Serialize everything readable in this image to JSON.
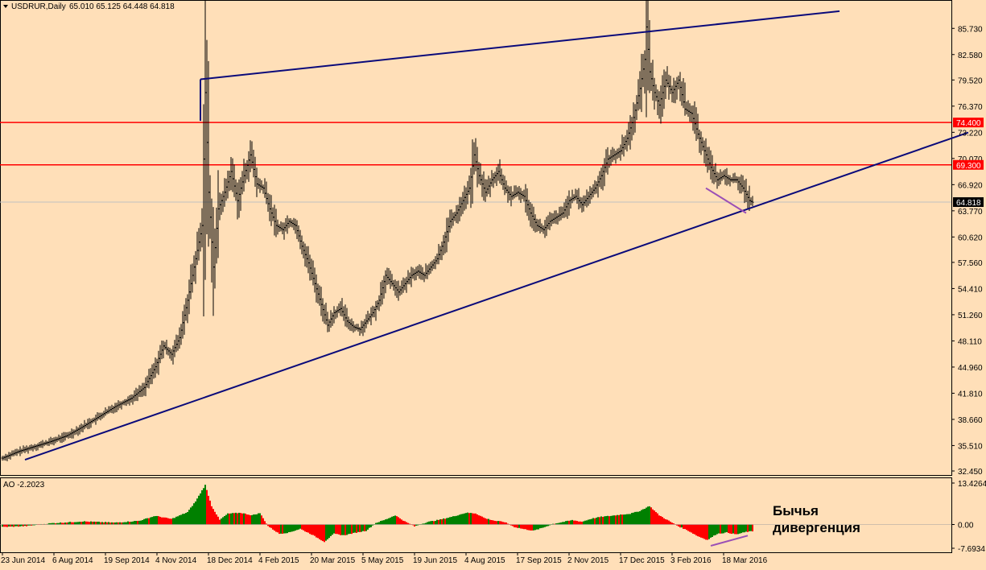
{
  "chart_data": [
    {
      "type": "candlestick",
      "header": {
        "symbol_label": "USDRUR,Daily",
        "ohlc_label": "65.010 65.125 64.448 64.818"
      },
      "ylim": [
        32.45,
        87.5
      ],
      "y_ticks": [
        "85.730",
        "82.580",
        "79.520",
        "76.370",
        "73.220",
        "70.070",
        "66.920",
        "63.770",
        "60.620",
        "57.560",
        "54.410",
        "51.260",
        "48.110",
        "44.960",
        "41.810",
        "38.660",
        "35.510",
        "32.450"
      ],
      "x_ticks": [
        "23 Jun 2014",
        "6 Aug 2014",
        "19 Sep 2014",
        "4 Nov 2014",
        "18 Dec 2014",
        "4 Feb 2015",
        "20 Mar 2015",
        "5 May 2015",
        "19 Jun 2015",
        "4 Aug 2015",
        "17 Sep 2015",
        "2 Nov 2015",
        "17 Dec 2015",
        "3 Feb 2016",
        "18 Mar 2016"
      ],
      "x_tick_index": [
        0,
        32,
        64,
        96,
        128,
        160,
        192,
        224,
        256,
        288,
        320,
        352,
        384,
        416,
        448
      ],
      "price_path": [
        [
          0,
          34.0
        ],
        [
          10,
          34.8
        ],
        [
          20,
          35.4
        ],
        [
          30,
          36.0
        ],
        [
          40,
          36.7
        ],
        [
          50,
          37.8
        ],
        [
          60,
          39.0
        ],
        [
          70,
          40.2
        ],
        [
          80,
          41.2
        ],
        [
          88,
          42.5
        ],
        [
          95,
          45.0
        ],
        [
          100,
          47.5
        ],
        [
          105,
          46.5
        ],
        [
          110,
          48.5
        ],
        [
          115,
          53.0
        ],
        [
          120,
          58.0
        ],
        [
          124,
          62.0
        ],
        [
          126,
          78.0
        ],
        [
          128,
          66.0
        ],
        [
          131,
          57.0
        ],
        [
          134,
          64.0
        ],
        [
          138,
          66.0
        ],
        [
          142,
          68.5
        ],
        [
          146,
          65.0
        ],
        [
          150,
          68.0
        ],
        [
          154,
          70.5
        ],
        [
          158,
          67.0
        ],
        [
          162,
          66.5
        ],
        [
          166,
          64.0
        ],
        [
          170,
          62.0
        ],
        [
          174,
          61.5
        ],
        [
          178,
          62.5
        ],
        [
          182,
          62.0
        ],
        [
          186,
          59.5
        ],
        [
          190,
          57.5
        ],
        [
          194,
          55.0
        ],
        [
          198,
          52.5
        ],
        [
          202,
          50.0
        ],
        [
          206,
          51.5
        ],
        [
          210,
          52.0
        ],
        [
          214,
          50.5
        ],
        [
          218,
          49.8
        ],
        [
          222,
          49.5
        ],
        [
          226,
          50.5
        ],
        [
          230,
          51.5
        ],
        [
          234,
          53.0
        ],
        [
          238,
          56.0
        ],
        [
          242,
          55.0
        ],
        [
          246,
          54.0
        ],
        [
          250,
          55.0
        ],
        [
          254,
          56.0
        ],
        [
          258,
          56.5
        ],
        [
          262,
          56.0
        ],
        [
          266,
          57.0
        ],
        [
          270,
          58.0
        ],
        [
          274,
          60.0
        ],
        [
          278,
          62.5
        ],
        [
          282,
          63.5
        ],
        [
          286,
          65.0
        ],
        [
          290,
          66.5
        ],
        [
          293,
          70.5
        ],
        [
          296,
          68.0
        ],
        [
          300,
          66.0
        ],
        [
          304,
          67.5
        ],
        [
          308,
          68.5
        ],
        [
          312,
          66.5
        ],
        [
          316,
          65.5
        ],
        [
          320,
          66.0
        ],
        [
          324,
          65.5
        ],
        [
          328,
          63.5
        ],
        [
          332,
          62.0
        ],
        [
          336,
          61.5
        ],
        [
          340,
          62.5
        ],
        [
          344,
          63.0
        ],
        [
          348,
          63.5
        ],
        [
          352,
          65.0
        ],
        [
          356,
          65.5
        ],
        [
          360,
          64.5
        ],
        [
          364,
          65.5
        ],
        [
          368,
          66.5
        ],
        [
          372,
          68.0
        ],
        [
          376,
          70.0
        ],
        [
          380,
          70.5
        ],
        [
          384,
          71.0
        ],
        [
          388,
          72.5
        ],
        [
          392,
          75.0
        ],
        [
          396,
          78.5
        ],
        [
          399,
          82.0
        ],
        [
          400,
          85.9
        ],
        [
          402,
          80.5
        ],
        [
          405,
          78.0
        ],
        [
          408,
          76.5
        ],
        [
          412,
          79.5
        ],
        [
          416,
          78.0
        ],
        [
          420,
          79.5
        ],
        [
          424,
          76.0
        ],
        [
          428,
          75.5
        ],
        [
          432,
          73.0
        ],
        [
          436,
          71.0
        ],
        [
          440,
          69.0
        ],
        [
          444,
          67.5
        ],
        [
          448,
          68.0
        ],
        [
          452,
          67.5
        ],
        [
          456,
          67.5
        ],
        [
          460,
          66.5
        ],
        [
          464,
          65.0
        ],
        [
          466,
          64.8
        ]
      ],
      "horizontal_levels": [
        {
          "value": 74.4,
          "label": "74.400",
          "color": "#ff0000"
        },
        {
          "value": 69.3,
          "label": "69.300",
          "color": "#ff0000"
        }
      ],
      "current_price": {
        "value": 64.818,
        "label": "64.818"
      },
      "trendlines": [
        {
          "from": [
            14,
            33.8
          ],
          "to": [
            600,
            73.2
          ],
          "color": "#0a0a7a"
        },
        {
          "from": [
            123,
            79.6
          ],
          "to": [
            520,
            87.8
          ],
          "color": "#0a0a7a"
        },
        {
          "from": [
            123,
            79.6
          ],
          "to": [
            123,
            74.6
          ],
          "color": "#0a0a7a"
        }
      ],
      "divergence_line": {
        "from": [
          437,
          66.5
        ],
        "to": [
          462,
          63.5
        ],
        "color": "#9b4fb6"
      },
      "last_bar_index": 466
    },
    {
      "type": "bar",
      "title": "AO -2.2023",
      "ylim": [
        -7.6934,
        13.4264
      ],
      "y_ticks": [
        "13.4264",
        "0.00",
        "-7.6934"
      ],
      "positive_color": "#008000",
      "negative_color": "#ff0000",
      "ao_path": [
        [
          0,
          -0.8
        ],
        [
          15,
          -0.5
        ],
        [
          30,
          0.4
        ],
        [
          50,
          1.0
        ],
        [
          70,
          0.6
        ],
        [
          85,
          1.2
        ],
        [
          95,
          2.8
        ],
        [
          105,
          1.8
        ],
        [
          115,
          4.0
        ],
        [
          120,
          7.5
        ],
        [
          126,
          12.8
        ],
        [
          130,
          6.0
        ],
        [
          135,
          1.5
        ],
        [
          140,
          3.5
        ],
        [
          148,
          3.8
        ],
        [
          155,
          3.0
        ],
        [
          160,
          3.7
        ],
        [
          165,
          -0.5
        ],
        [
          172,
          -3.0
        ],
        [
          178,
          -2.6
        ],
        [
          185,
          -1.4
        ],
        [
          192,
          -3.2
        ],
        [
          200,
          -5.6
        ],
        [
          206,
          -3.0
        ],
        [
          212,
          -3.5
        ],
        [
          220,
          -2.6
        ],
        [
          226,
          -2.0
        ],
        [
          232,
          0.5
        ],
        [
          238,
          1.6
        ],
        [
          244,
          3.0
        ],
        [
          250,
          1.0
        ],
        [
          256,
          -0.6
        ],
        [
          264,
          0.8
        ],
        [
          272,
          1.6
        ],
        [
          280,
          2.6
        ],
        [
          288,
          3.8
        ],
        [
          294,
          3.6
        ],
        [
          300,
          2.0
        ],
        [
          306,
          1.2
        ],
        [
          312,
          0.8
        ],
        [
          318,
          -0.8
        ],
        [
          324,
          -1.5
        ],
        [
          330,
          -2.0
        ],
        [
          336,
          -1.0
        ],
        [
          342,
          0.2
        ],
        [
          348,
          0.8
        ],
        [
          354,
          1.4
        ],
        [
          360,
          0.9
        ],
        [
          366,
          1.9
        ],
        [
          372,
          2.5
        ],
        [
          378,
          2.8
        ],
        [
          384,
          3.2
        ],
        [
          390,
          3.5
        ],
        [
          396,
          4.4
        ],
        [
          402,
          6.0
        ],
        [
          408,
          3.0
        ],
        [
          414,
          1.2
        ],
        [
          420,
          -0.6
        ],
        [
          426,
          -2.0
        ],
        [
          432,
          -3.8
        ],
        [
          438,
          -5.0
        ],
        [
          444,
          -3.0
        ],
        [
          450,
          -2.6
        ],
        [
          456,
          -3.2
        ],
        [
          462,
          -2.4
        ],
        [
          466,
          -2.2
        ]
      ],
      "divergence_line": {
        "from": [
          440,
          -6.9
        ],
        "to": [
          463,
          -3.6
        ],
        "color": "#9b4fb6"
      },
      "annotation_lines": [
        "Бычья",
        "дивергенция"
      ]
    }
  ]
}
